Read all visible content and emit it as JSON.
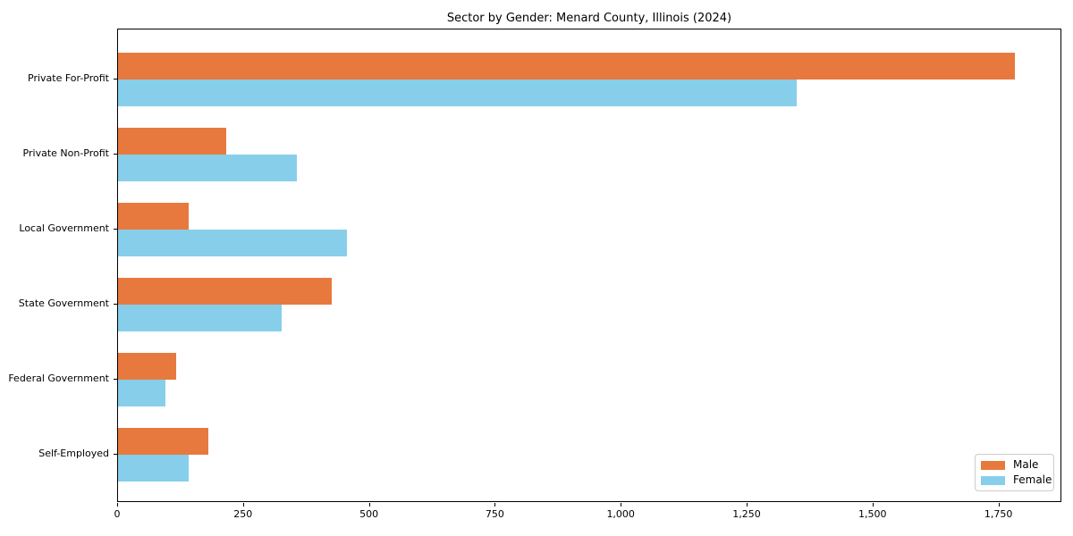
{
  "chart_data": {
    "type": "bar",
    "orientation": "horizontal",
    "title": "Sector by Gender: Menard County, Illinois (2024)",
    "categories": [
      "Private For-Profit",
      "Private Non-Profit",
      "Local Government",
      "State Government",
      "Federal Government",
      "Self-Employed"
    ],
    "series": [
      {
        "name": "Male",
        "color": "#E8793E",
        "values": [
          1785,
          215,
          140,
          425,
          115,
          180
        ]
      },
      {
        "name": "Female",
        "color": "#87CEEB",
        "values": [
          1350,
          355,
          455,
          325,
          95,
          140
        ]
      }
    ],
    "xlabel": "",
    "ylabel": "",
    "xlim": [
      0,
      1875
    ],
    "xticks": [
      0,
      250,
      500,
      750,
      1000,
      1250,
      1500,
      1750
    ],
    "xtick_labels": [
      "0",
      "250",
      "500",
      "750",
      "1,000",
      "1,250",
      "1,500",
      "1,750"
    ],
    "grid": false,
    "legend_position": "lower right",
    "frame_color": "#000000",
    "background_color": "#ffffff"
  }
}
